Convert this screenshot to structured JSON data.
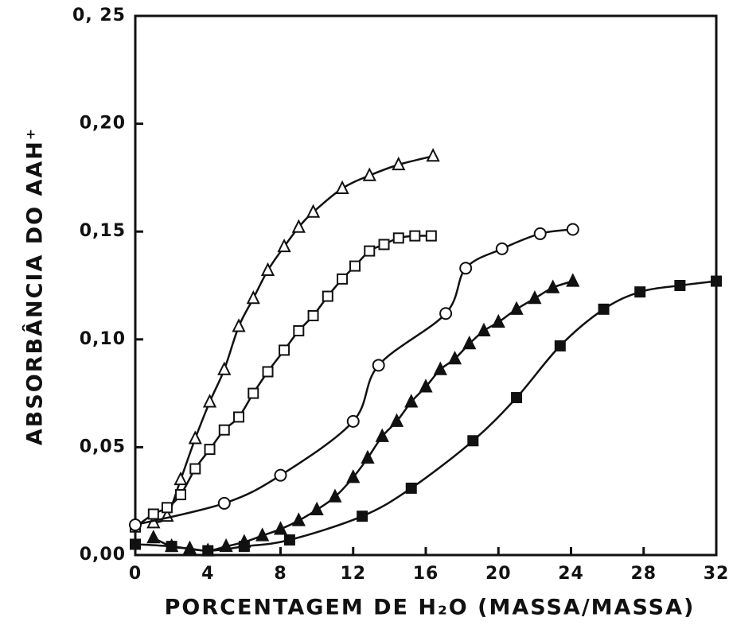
{
  "chart_data": {
    "type": "line",
    "xlabel": "PORCENTAGEM DE H₂O (MASSA/MASSA)",
    "ylabel": "ABSORBÂNCIA DO AAH⁺",
    "xlim": [
      0,
      32
    ],
    "xticks": [
      0,
      4,
      8,
      12,
      16,
      20,
      24,
      28,
      32
    ],
    "ylim": [
      0,
      0.25
    ],
    "yticks": [
      {
        "value": 0,
        "label": "0,00"
      },
      {
        "value": 0.05,
        "label": "0,05"
      },
      {
        "value": 0.1,
        "label": "0,10"
      },
      {
        "value": 0.15,
        "label": "0,15"
      },
      {
        "value": 0.2,
        "label": "0,20"
      },
      {
        "value": 0.25,
        "label": "0, 25"
      }
    ],
    "grid": false,
    "series": [
      {
        "marker": "open-triangle",
        "color": "#111111",
        "x": [
          1,
          1.75,
          2.5,
          3.3,
          4.1,
          4.9,
          5.7,
          6.5,
          7.3,
          8.2,
          9,
          9.8,
          11.4,
          12.9,
          14.5,
          16.4
        ],
        "values": [
          0.015,
          0.018,
          0.035,
          0.054,
          0.071,
          0.086,
          0.106,
          0.119,
          0.132,
          0.143,
          0.152,
          0.159,
          0.17,
          0.176,
          0.181,
          0.185
        ]
      },
      {
        "marker": "open-square",
        "color": "#111111",
        "x": [
          0,
          1,
          1.75,
          2.5,
          3.3,
          4.1,
          4.9,
          5.7,
          6.5,
          7.3,
          8.2,
          9,
          9.8,
          10.6,
          11.4,
          12.1,
          12.9,
          13.7,
          14.5,
          15.4,
          16.3
        ],
        "values": [
          0.013,
          0.019,
          0.022,
          0.028,
          0.04,
          0.049,
          0.058,
          0.064,
          0.075,
          0.085,
          0.095,
          0.104,
          0.111,
          0.12,
          0.128,
          0.134,
          0.141,
          0.144,
          0.147,
          0.148,
          0.148
        ]
      },
      {
        "marker": "open-circle",
        "color": "#111111",
        "x": [
          0,
          4.9,
          8,
          12,
          13.4,
          17.1,
          18.2,
          20.2,
          22.3,
          24.1
        ],
        "values": [
          0.014,
          0.024,
          0.037,
          0.062,
          0.088,
          0.112,
          0.133,
          0.142,
          0.149,
          0.151
        ]
      },
      {
        "marker": "filled-triangle",
        "color": "#111111",
        "x": [
          1,
          2,
          3,
          4,
          5,
          6,
          7,
          8,
          9,
          10,
          11,
          12,
          12.8,
          13.6,
          14.4,
          15.2,
          16,
          16.8,
          17.6,
          18.4,
          19.2,
          20,
          21,
          22,
          23,
          24.1
        ],
        "values": [
          0.008,
          0.004,
          0.003,
          0.002,
          0.004,
          0.006,
          0.009,
          0.012,
          0.016,
          0.021,
          0.027,
          0.036,
          0.045,
          0.055,
          0.062,
          0.071,
          0.078,
          0.086,
          0.091,
          0.098,
          0.104,
          0.108,
          0.114,
          0.119,
          0.124,
          0.127
        ]
      },
      {
        "marker": "filled-square",
        "color": "#111111",
        "x": [
          0,
          2,
          4,
          6,
          8.5,
          12.5,
          15.2,
          18.6,
          21,
          23.4,
          25.8,
          27.8,
          30,
          32
        ],
        "values": [
          0.005,
          0.004,
          0.002,
          0.004,
          0.007,
          0.018,
          0.031,
          0.053,
          0.073,
          0.097,
          0.114,
          0.122,
          0.125,
          0.127
        ]
      }
    ]
  }
}
